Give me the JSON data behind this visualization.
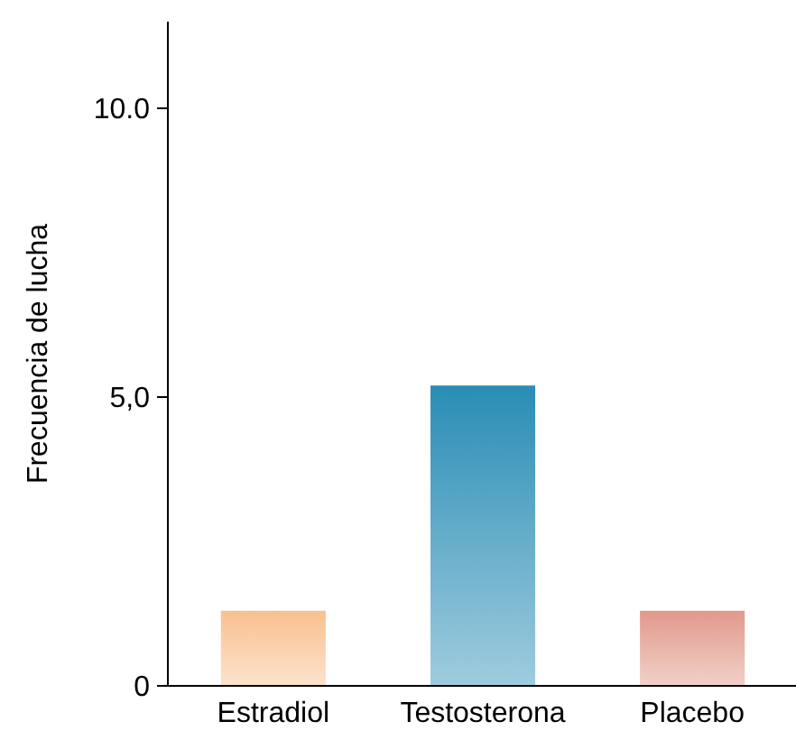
{
  "chart_data": {
    "type": "bar",
    "ylabel": "Frecuencia de lucha",
    "categories": [
      "Estradiol",
      "Testosterona",
      "Placebo"
    ],
    "values": [
      1.3,
      5.2,
      1.3
    ],
    "colors": [
      "#f9c08f",
      "#2a8db5",
      "#e0998a"
    ],
    "ylim": [
      0,
      11.5
    ],
    "yticks": [
      0,
      {
        "value": 5,
        "label": "5,0"
      },
      {
        "value": 10,
        "label": "10.0"
      }
    ],
    "grid": false
  }
}
